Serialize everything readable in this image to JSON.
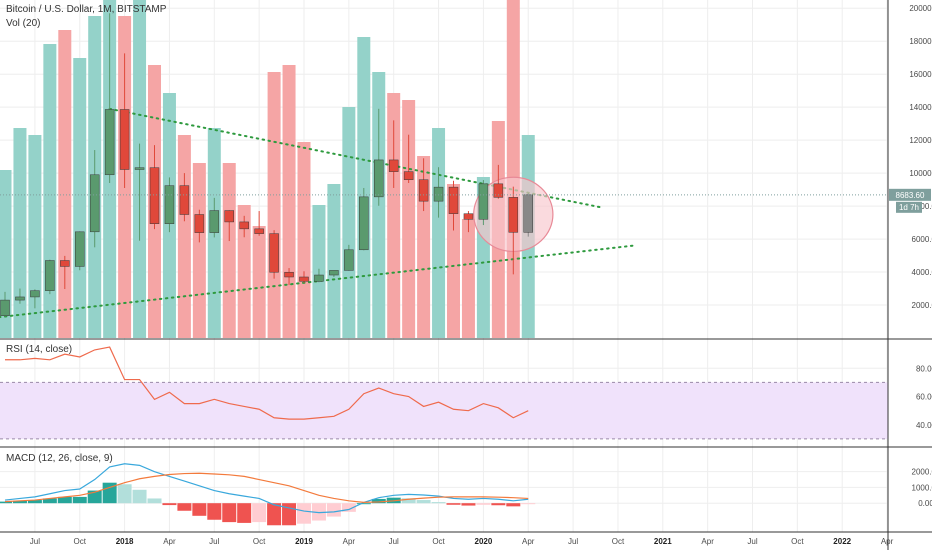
{
  "legend": {
    "price": "Bitcoin / U.S. Dollar, 1M, BITSTAMP",
    "volume": "Vol (20)",
    "rsi": "RSI (14, close)",
    "macd": "MACD (12, 26, close, 9)"
  },
  "price_tags": {
    "last": "8683.60",
    "countdown": "1d 7h"
  },
  "colors": {
    "up": "#5a9a6e",
    "down": "#e0483a",
    "vol_up": "#94d2c9",
    "vol_down": "#f5a5a5",
    "trend": "#2e9a3e",
    "rsi_line": "#ef6a4c",
    "rsi_band": "#f0e2fb",
    "macd_line": "#39a8dc",
    "signal_line": "#f37a3c",
    "hist_up_strong": "#26a69a",
    "hist_up_weak": "#b2dfdb",
    "hist_down_strong": "#ef5350",
    "hist_down_weak": "#ffcdd2",
    "last_tag": "#7f9f9d",
    "highlight_fill": "#f7c6cc",
    "highlight_stroke": "#e88a97"
  },
  "chart_data": [
    {
      "type": "candlestick",
      "title": "Bitcoin / U.S. Dollar, 1M, BITSTAMP",
      "x": [
        "2017-05",
        "2017-06",
        "2017-07",
        "2017-08",
        "2017-09",
        "2017-10",
        "2017-11",
        "2017-12",
        "2018-01",
        "2018-02",
        "2018-03",
        "2018-04",
        "2018-05",
        "2018-06",
        "2018-07",
        "2018-08",
        "2018-09",
        "2018-10",
        "2018-11",
        "2018-12",
        "2019-01",
        "2019-02",
        "2019-03",
        "2019-04",
        "2019-05",
        "2019-06",
        "2019-07",
        "2019-08",
        "2019-09",
        "2019-10",
        "2019-11",
        "2019-12",
        "2020-01",
        "2020-02",
        "2020-03",
        "2020-04"
      ],
      "open": [
        1350,
        2300,
        2490,
        2870,
        4700,
        4340,
        6440,
        9900,
        13860,
        10220,
        10330,
        6930,
        9240,
        7490,
        6390,
        7730,
        7040,
        6620,
        6330,
        3990,
        3700,
        3440,
        3820,
        4100,
        5350,
        8560,
        10800,
        10090,
        9600,
        8300,
        9150,
        7540,
        7200,
        9350,
        8530,
        6410
      ],
      "high": [
        2800,
        3000,
        2950,
        4750,
        4980,
        6470,
        11400,
        19700,
        17260,
        11790,
        11700,
        9740,
        10000,
        7780,
        8500,
        7750,
        7410,
        7700,
        6540,
        4240,
        4050,
        4200,
        4100,
        5650,
        9100,
        13900,
        13200,
        12330,
        10900,
        10360,
        9540,
        7700,
        9580,
        10500,
        9180,
        8760
      ],
      "low": [
        1300,
        2080,
        1800,
        2660,
        2970,
        4110,
        5500,
        9400,
        9100,
        5900,
        6600,
        6420,
        7080,
        5800,
        6100,
        5880,
        6110,
        6200,
        3600,
        3220,
        3340,
        3380,
        3700,
        4080,
        5320,
        8020,
        9100,
        9400,
        7700,
        7300,
        6520,
        6420,
        6850,
        8450,
        3860,
        6150
      ],
      "close": [
        2300,
        2490,
        2870,
        4700,
        4340,
        6440,
        9900,
        13860,
        10220,
        10330,
        6930,
        9240,
        7490,
        6390,
        7730,
        7040,
        6620,
        6330,
        3990,
        3700,
        3440,
        3820,
        4100,
        5350,
        8560,
        10800,
        10090,
        9600,
        8300,
        9150,
        7540,
        7200,
        9350,
        8530,
        6410,
        8683.6
      ],
      "volume": [
        2400,
        3000,
        2900,
        4200,
        4400,
        4000,
        4600,
        5800,
        4600,
        5500,
        3900,
        3500,
        2900,
        2500,
        3000,
        2500,
        1900,
        1600,
        3800,
        3900,
        2800,
        1900,
        2200,
        3300,
        4300,
        3800,
        3500,
        3400,
        2600,
        3000,
        2200,
        1700,
        2300,
        3100,
        5600,
        2900
      ],
      "yticks": [
        2000,
        4000,
        6000,
        8000,
        10000,
        12000,
        14000,
        16000,
        18000,
        20000
      ],
      "ytick_labels": [
        "2000.00",
        "4000.00",
        "6000.00",
        "8000.00",
        "10000.00",
        "12000.00",
        "14000.00",
        "16000.00",
        "18000.00",
        "20000.00"
      ],
      "ylim": [
        0,
        20500
      ],
      "trendlines": [
        {
          "name": "descending resistance",
          "from": [
            "2017-12",
            13900
          ],
          "to": [
            "2020-09",
            7900
          ]
        },
        {
          "name": "ascending support",
          "from": [
            "2017-03",
            1100
          ],
          "to": [
            "2020-11",
            5600
          ]
        }
      ],
      "highlight": {
        "center": [
          "2020-03",
          7500
        ],
        "span_months": 5.3,
        "span_price": 4500
      }
    },
    {
      "type": "line",
      "title": "RSI (14, close)",
      "x_start": "2017-05",
      "values": [
        86,
        86,
        87,
        86,
        90,
        88,
        93,
        95,
        72,
        72,
        58,
        63,
        55,
        55,
        58,
        55,
        53,
        51,
        45,
        44,
        44,
        45,
        46,
        51,
        62,
        66,
        62,
        60,
        53,
        56,
        51,
        50,
        55,
        52,
        45,
        50
      ],
      "band": [
        30,
        70
      ],
      "yticks": [
        40,
        60,
        80
      ],
      "ytick_labels": [
        "40.00",
        "60.00",
        "80.00"
      ],
      "ylim": [
        25,
        100
      ]
    },
    {
      "type": "line+bar",
      "title": "MACD (12, 26, close, 9)",
      "x_start": "2017-05",
      "macd": [
        200,
        300,
        400,
        600,
        800,
        900,
        1500,
        2300,
        2500,
        2400,
        2000,
        1700,
        1400,
        1100,
        800,
        600,
        450,
        300,
        -100,
        -300,
        -500,
        -600,
        -550,
        -400,
        50,
        350,
        500,
        560,
        520,
        450,
        300,
        250,
        300,
        250,
        150,
        250
      ],
      "signal": [
        100,
        150,
        200,
        300,
        400,
        500,
        700,
        1000,
        1300,
        1550,
        1700,
        1820,
        1880,
        1900,
        1850,
        1800,
        1700,
        1500,
        1300,
        1100,
        800,
        500,
        300,
        150,
        50,
        80,
        150,
        250,
        320,
        380,
        400,
        400,
        400,
        380,
        350,
        300
      ],
      "histogram": [
        100,
        150,
        200,
        300,
        400,
        400,
        800,
        1300,
        1200,
        850,
        300,
        -120,
        -480,
        -800,
        -1050,
        -1200,
        -1250,
        -1200,
        -1400,
        -1400,
        -1300,
        -1100,
        -850,
        -550,
        0,
        270,
        350,
        310,
        200,
        70,
        -100,
        -150,
        -100,
        -130,
        -200,
        -50
      ],
      "yticks": [
        0,
        1000,
        2000
      ],
      "ytick_labels": [
        "0.00",
        "1000.00",
        "2000.00"
      ],
      "ylim": [
        -1700,
        3500
      ]
    }
  ],
  "xaxis": {
    "ticks": [
      {
        "month": "2017-07",
        "label": "Jul",
        "year": false
      },
      {
        "month": "2017-10",
        "label": "Oct",
        "year": false
      },
      {
        "month": "2018-01",
        "label": "2018",
        "year": true
      },
      {
        "month": "2018-04",
        "label": "Apr",
        "year": false
      },
      {
        "month": "2018-07",
        "label": "Jul",
        "year": false
      },
      {
        "month": "2018-10",
        "label": "Oct",
        "year": false
      },
      {
        "month": "2019-01",
        "label": "2019",
        "year": true
      },
      {
        "month": "2019-04",
        "label": "Apr",
        "year": false
      },
      {
        "month": "2019-07",
        "label": "Jul",
        "year": false
      },
      {
        "month": "2019-10",
        "label": "Oct",
        "year": false
      },
      {
        "month": "2020-01",
        "label": "2020",
        "year": true
      },
      {
        "month": "2020-04",
        "label": "Apr",
        "year": false
      },
      {
        "month": "2020-07",
        "label": "Jul",
        "year": false
      },
      {
        "month": "2020-10",
        "label": "Oct",
        "year": false
      },
      {
        "month": "2021-01",
        "label": "2021",
        "year": true
      },
      {
        "month": "2021-04",
        "label": "Apr",
        "year": false
      },
      {
        "month": "2021-07",
        "label": "Jul",
        "year": false
      },
      {
        "month": "2021-10",
        "label": "Oct",
        "year": false
      },
      {
        "month": "2022-01",
        "label": "2022",
        "year": true
      },
      {
        "month": "2022-04",
        "label": "Apr",
        "year": false
      }
    ]
  }
}
